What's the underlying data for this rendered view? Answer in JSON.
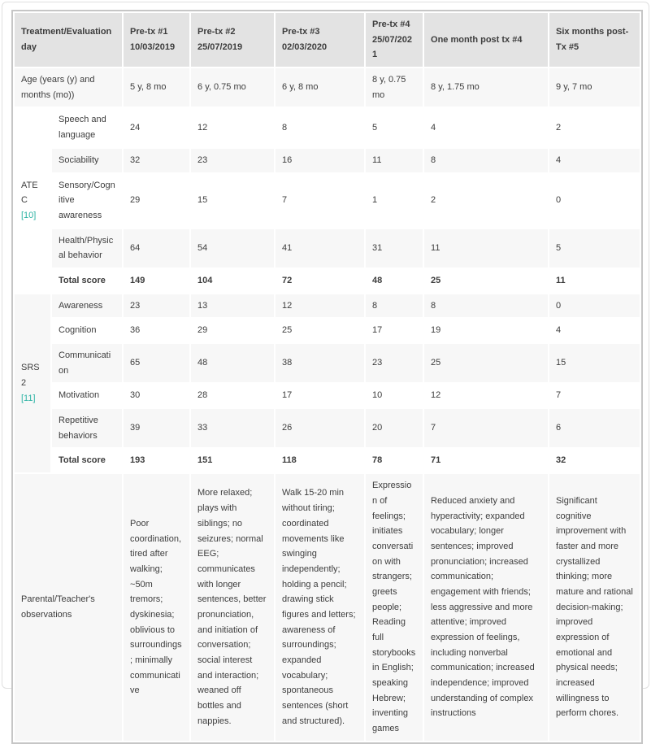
{
  "colors": {
    "header_bg": "#e3e3e3",
    "row_stripe_bg": "#f7f7f7",
    "row_plain_bg": "#ffffff",
    "text": "#3d3d3d",
    "reference_link": "#2db3a4",
    "table_border": "#c6c6c6",
    "page_border": "#e0e0e0"
  },
  "table": {
    "header": [
      "Treatment/Evaluation day",
      "Pre-tx #1 10/03/2019",
      "Pre-tx #2 25/07/2019",
      "Pre-tx #3 02/03/2020",
      "Pre-tx #4 25/07/2021",
      "One month post tx #4",
      "Six months post-Tx #5"
    ],
    "groups": [
      {
        "id": "atec",
        "name": "ATEC",
        "reference": "[10]",
        "span": 5
      },
      {
        "id": "srs2",
        "name": "SRS2",
        "reference": "[11]",
        "span": 6
      }
    ],
    "rows": [
      {
        "kind": "full-label",
        "label": "Age (years (y) and months (mo))",
        "values": [
          "5 y, 8 mo",
          "6 y, 0.75 mo",
          "6 y, 8 mo",
          "8 y, 0.75 mo",
          "8 y, 1.75 mo",
          "9 y, 7 mo"
        ]
      },
      {
        "kind": "sub",
        "group": "atec",
        "label": "Speech and language",
        "values": [
          "24",
          "12",
          "8",
          "5",
          "4",
          "2"
        ]
      },
      {
        "kind": "sub",
        "label": "Sociability",
        "values": [
          "32",
          "23",
          "16",
          "11",
          "8",
          "4"
        ]
      },
      {
        "kind": "sub",
        "label": "Sensory/Cognitive awareness",
        "values": [
          "29",
          "15",
          "7",
          "1",
          "2",
          "0"
        ]
      },
      {
        "kind": "sub",
        "label": "Health/Physical behavior",
        "values": [
          "64",
          "54",
          "41",
          "31",
          "11",
          "5"
        ]
      },
      {
        "kind": "total",
        "label": "Total score",
        "values": [
          "149",
          "104",
          "72",
          "48",
          "25",
          "11"
        ]
      },
      {
        "kind": "sub",
        "group": "srs2",
        "label": "Awareness",
        "values": [
          "23",
          "13",
          "12",
          "8",
          "8",
          "0"
        ]
      },
      {
        "kind": "sub",
        "label": "Cognition",
        "values": [
          "36",
          "29",
          "25",
          "17",
          "19",
          "4"
        ]
      },
      {
        "kind": "sub",
        "label": "Communication",
        "values": [
          "65",
          "48",
          "38",
          "23",
          "25",
          "15"
        ]
      },
      {
        "kind": "sub",
        "label": "Motivation",
        "values": [
          "30",
          "28",
          "17",
          "10",
          "12",
          "7"
        ]
      },
      {
        "kind": "sub",
        "label": "Repetitive behaviors",
        "values": [
          "39",
          "33",
          "26",
          "20",
          "7",
          "6"
        ]
      },
      {
        "kind": "total",
        "label": "Total score",
        "values": [
          "193",
          "151",
          "118",
          "78",
          "71",
          "32"
        ]
      },
      {
        "kind": "full-label",
        "label": "Parental/Teacher's observations",
        "values": [
          "Poor coordination, tired after walking; ~50m tremors; dyskinesia; oblivious to surroundings; minimally communicative",
          "More relaxed; plays with siblings; no seizures; normal EEG; communicates with longer sentences, better pronunciation, and initiation of conversation; social interest and interaction; weaned off bottles and nappies.",
          "Walk 15-20 min without tiring; coordinated movements like swinging independently; holding a pencil; drawing stick figures and letters; awareness of surroundings; expanded vocabulary; spontaneous sentences (short and structured).",
          "Expression of feelings; initiates conversation with strangers; greets people; Reading full storybooks in English; speaking Hebrew; inventing games",
          "Reduced anxiety and hyperactivity; expanded vocabulary; longer sentences; improved pronunciation; increased communication; engagement with friends; less aggressive and more attentive; improved expression of feelings, including nonverbal communication; increased independence; improved understanding of complex instructions",
          "Significant cognitive improvement with faster and more crystallized thinking; more mature and rational decision-making; improved expression of emotional and physical needs; increased willingness to perform chores."
        ]
      }
    ]
  }
}
